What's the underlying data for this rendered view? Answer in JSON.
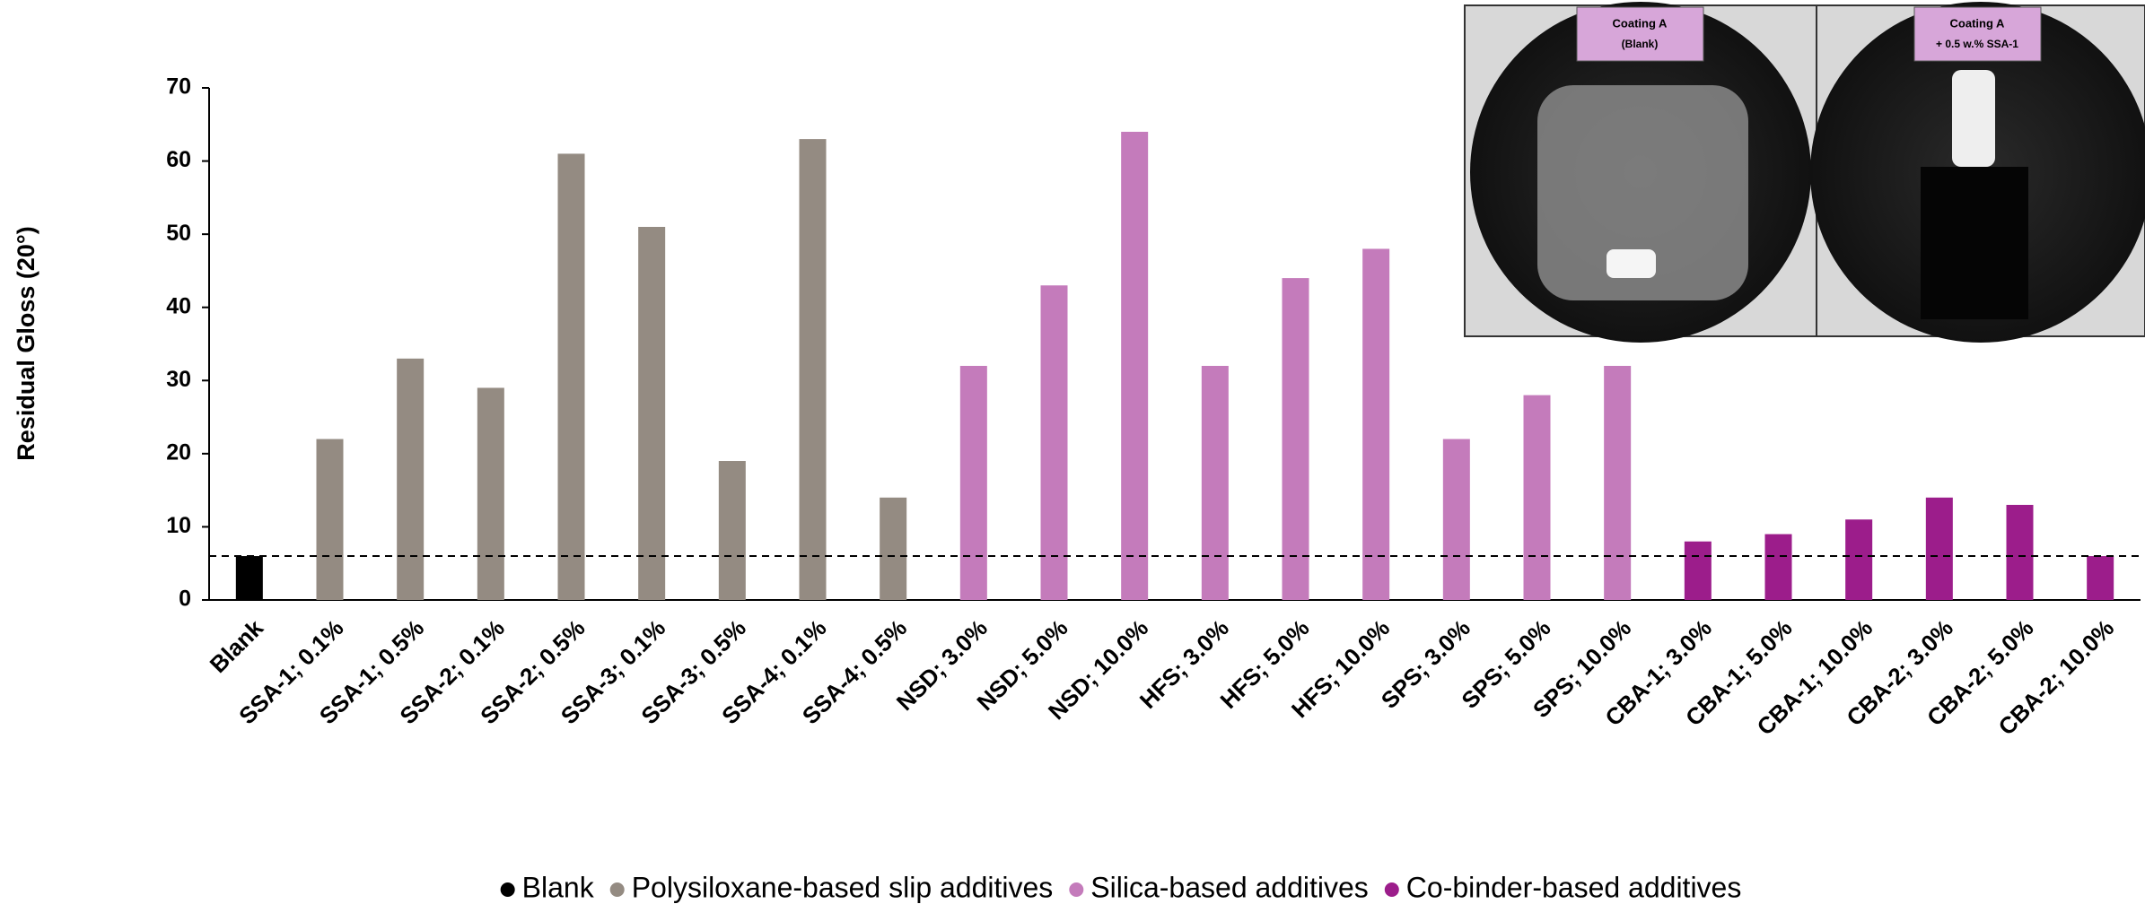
{
  "chart_data": {
    "type": "bar",
    "y_label": "Residual Gloss (20°)",
    "categories": [
      "Blank",
      "SSA-1; 0.1%",
      "SSA-1; 0.5%",
      "SSA-2; 0.1%",
      "SSA-2; 0.5%",
      "SSA-3; 0.1%",
      "SSA-3; 0.5%",
      "SSA-4; 0.1%",
      "SSA-4; 0.5%",
      "NSD; 3.0%",
      "NSD; 5.0%",
      "NSD; 10.0%",
      "HFS; 3.0%",
      "HFS; 5.0%",
      "HFS; 10.0%",
      "SPS; 3.0%",
      "SPS; 5.0%",
      "SPS; 10.0%",
      "CBA-1; 3.0%",
      "CBA-1; 5.0%",
      "CBA-1; 10.0%",
      "CBA-2; 3.0%",
      "CBA-2; 5.0%",
      "CBA-2; 10.0%"
    ],
    "series": [
      {
        "name": "Blank",
        "color": "#000000",
        "values": [
          6,
          null,
          null,
          null,
          null,
          null,
          null,
          null,
          null,
          null,
          null,
          null,
          null,
          null,
          null,
          null,
          null,
          null,
          null,
          null,
          null,
          null,
          null,
          null
        ]
      },
      {
        "name": "Polysiloxane-based slip additives",
        "color": "#948b82",
        "values": [
          null,
          22,
          33,
          29,
          61,
          51,
          19,
          63,
          14,
          null,
          null,
          null,
          null,
          null,
          null,
          null,
          null,
          null,
          null,
          null,
          null,
          null,
          null,
          null
        ]
      },
      {
        "name": "Silica-based additives",
        "color": "#c47bbb",
        "values": [
          null,
          null,
          null,
          null,
          null,
          null,
          null,
          null,
          null,
          32,
          43,
          64,
          32,
          44,
          48,
          22,
          28,
          32,
          null,
          null,
          null,
          null,
          null,
          null
        ]
      },
      {
        "name": "Co-binder-based additives",
        "color": "#9c1d8b",
        "values": [
          null,
          null,
          null,
          null,
          null,
          null,
          null,
          null,
          null,
          null,
          null,
          null,
          null,
          null,
          null,
          null,
          null,
          null,
          8,
          9,
          11,
          14,
          13,
          6
        ]
      }
    ],
    "ylim": [
      0,
      70
    ],
    "yticks": [
      0,
      10,
      20,
      30,
      40,
      50,
      60,
      70
    ],
    "grid": false,
    "annotations": [
      [
        "Coating A",
        "(Blank)"
      ],
      [
        "Coating A",
        "+ 0.5 w.% SSA-1"
      ]
    ]
  }
}
